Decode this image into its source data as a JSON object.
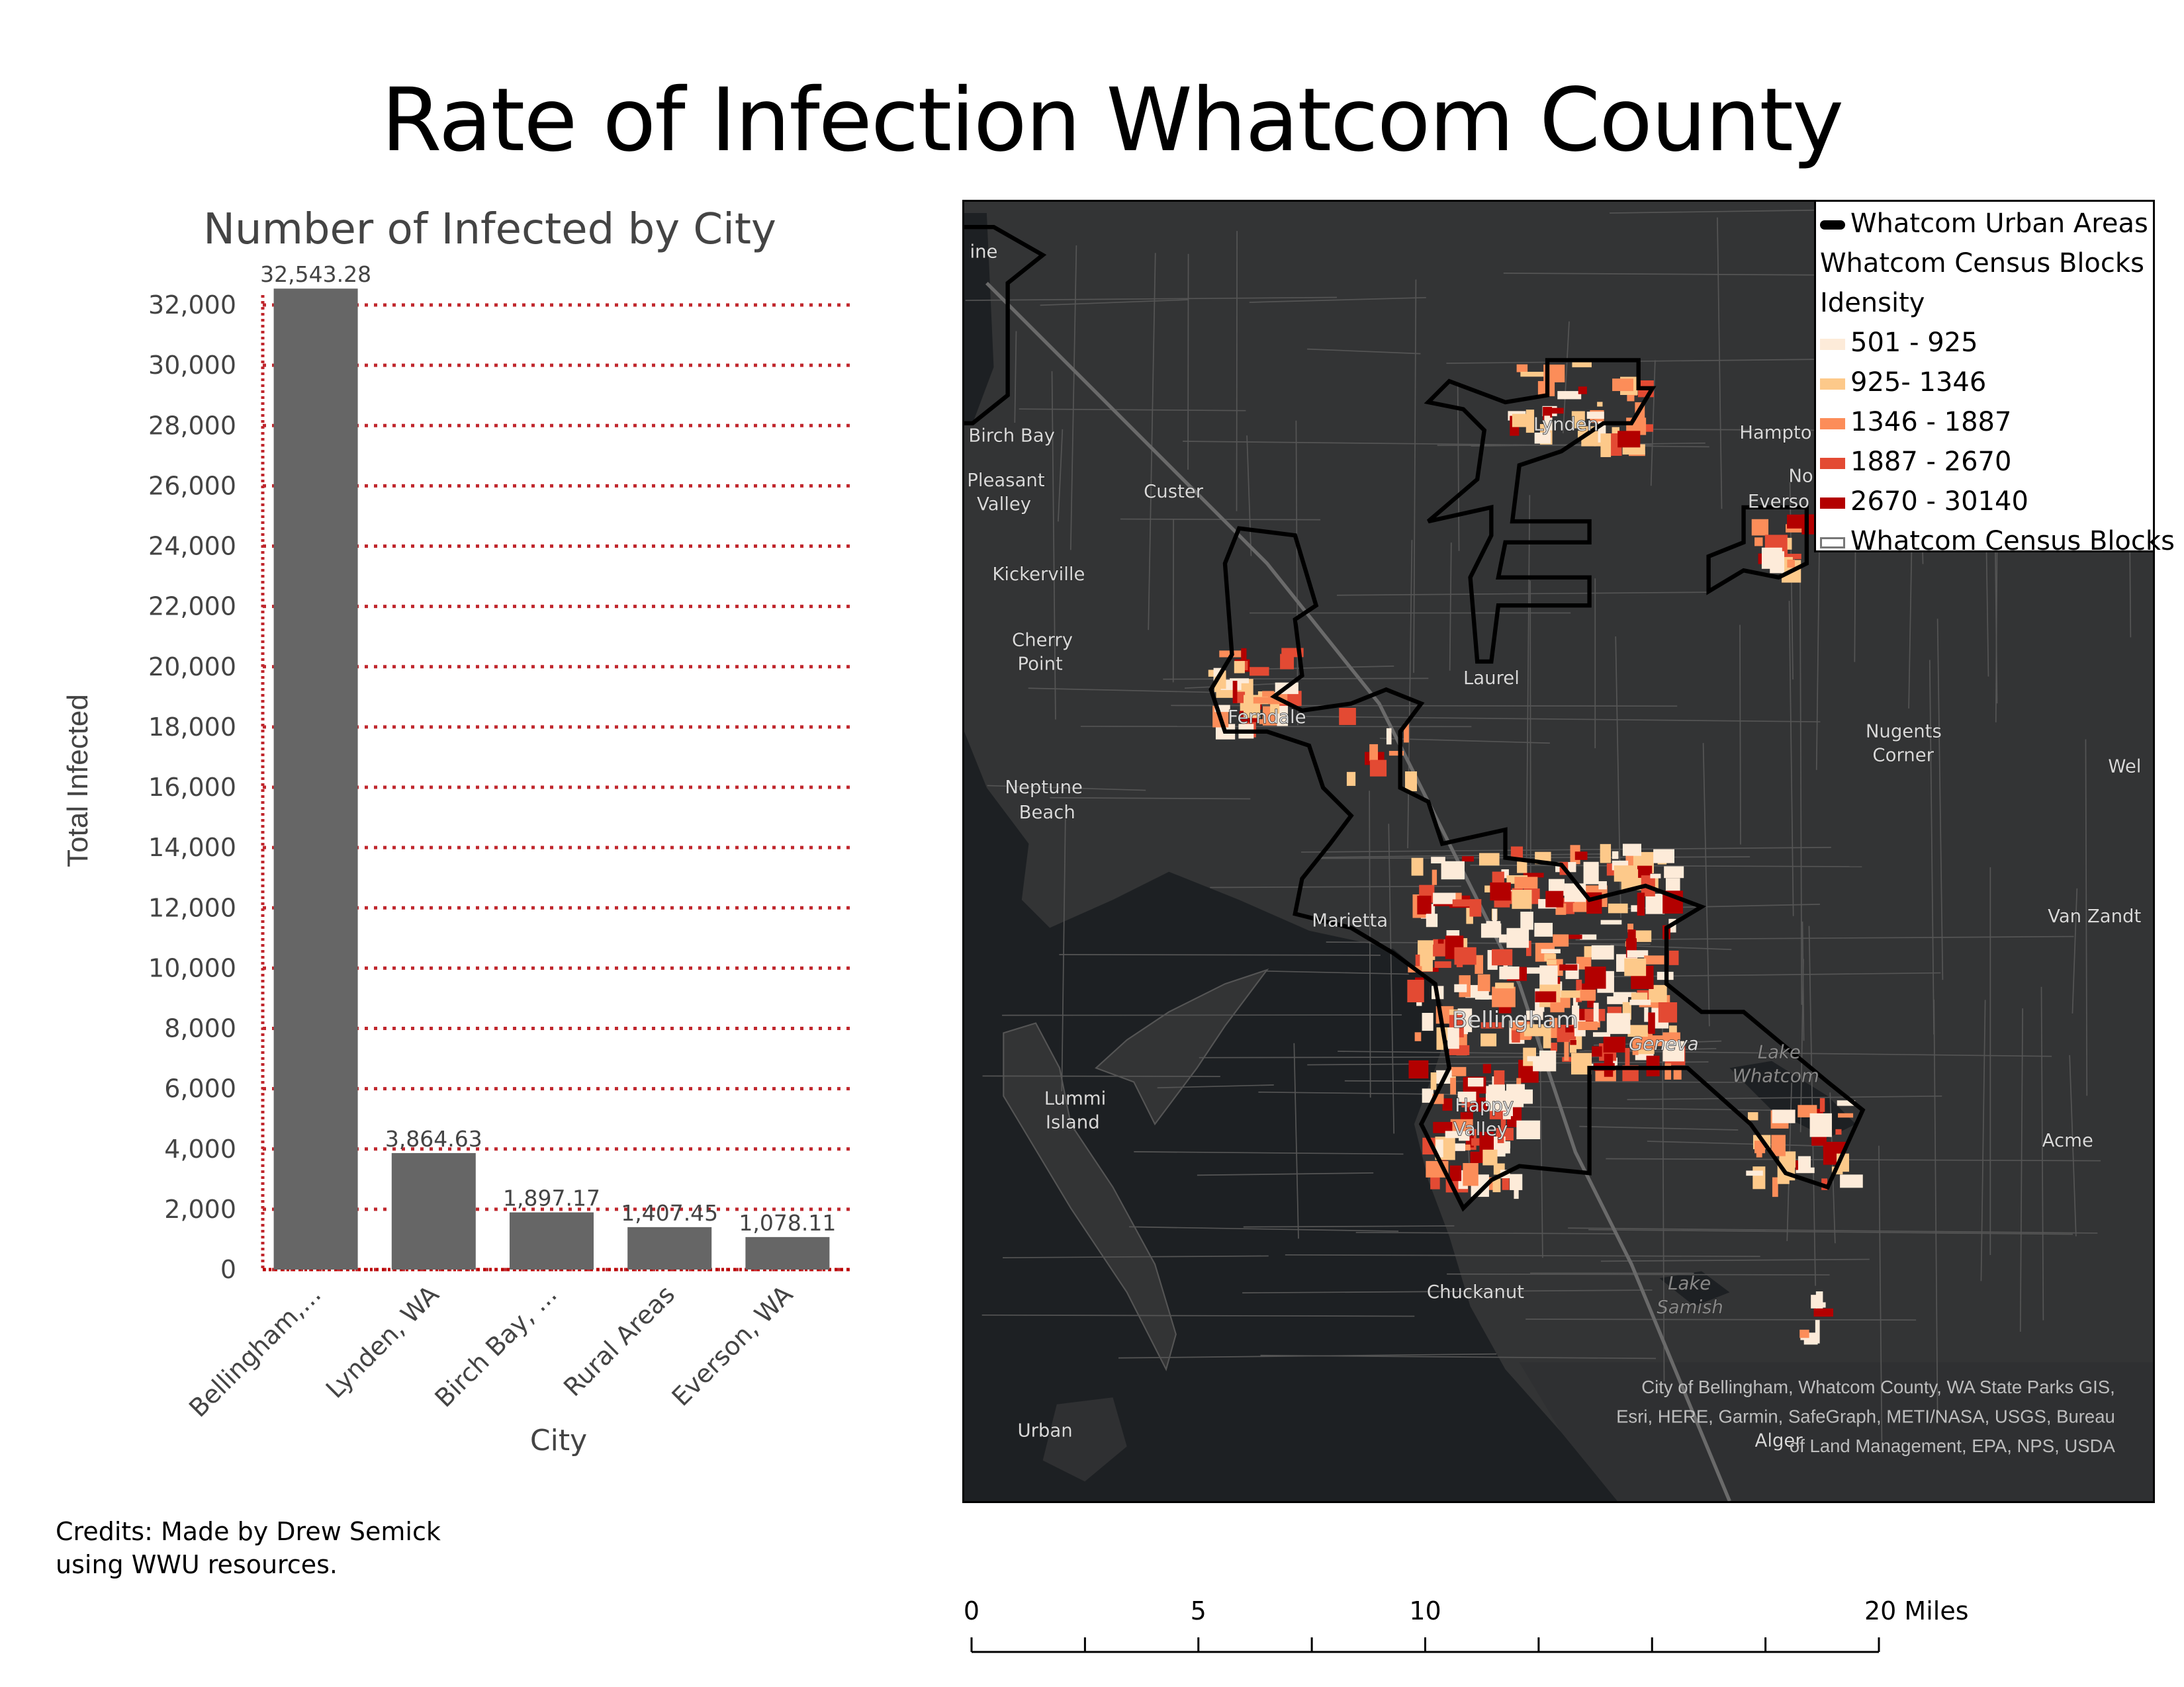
{
  "title": "Rate of Infection Whatcom County",
  "chart_data": {
    "type": "bar",
    "title": "Number of Infected by City",
    "xlabel": "City",
    "ylabel": "Total Infected",
    "categories": [
      "Bellingham,...",
      "Lynden, WA",
      "Birch Bay, ...",
      "Rural Areas",
      "Everson, WA"
    ],
    "values": [
      32543.28,
      3864.63,
      1897.17,
      1407.45,
      1078.11
    ],
    "data_labels": [
      "32,543.28",
      "3,864.63",
      "1,897.17",
      "1,407.45",
      "1,078.11"
    ],
    "ylim": [
      0,
      32000
    ],
    "yticks": [
      "0",
      "2,000",
      "4,000",
      "6,000",
      "8,000",
      "10,000",
      "12,000",
      "14,000",
      "16,000",
      "18,000",
      "20,000",
      "22,000",
      "24,000",
      "26,000",
      "28,000",
      "30,000",
      "32,000"
    ],
    "grid": true,
    "bar_color": "#666666",
    "grid_color": "#c0272d"
  },
  "credits": [
    "Credits: Made by Drew Semick",
    "using WWU resources."
  ],
  "legend": {
    "urban_areas": "Whatcom Urban Areas",
    "layer": "Whatcom Census Blocks",
    "field": "Idensity",
    "classes": [
      {
        "label": "501 - 925",
        "color": "#fdebd9"
      },
      {
        "label": "925- 1346",
        "color": "#fdc98a"
      },
      {
        "label": "1346 - 1887",
        "color": "#fc8d59"
      },
      {
        "label": "1887 - 2670",
        "color": "#e34a33"
      },
      {
        "label": "2670 - 30140",
        "color": "#b30000"
      }
    ],
    "outline_layer": "Whatcom Census Blocks"
  },
  "map": {
    "place_labels": [
      "ine",
      "Birch Bay",
      "Pleasant",
      "Valley",
      "Custer",
      "Kickerville",
      "Cherry",
      "Point",
      "Lynden",
      "Laurel",
      "Ferndale",
      "Neptune",
      "Beach",
      "Hampto",
      "No",
      "Everso",
      "Nugents",
      "Corner",
      "Wel",
      "Marietta",
      "Van Zandt",
      "Bellingham",
      "Geneva",
      "Lake",
      "Whatcom",
      "Lummi",
      "Island",
      "Happy",
      "Valley",
      "Acme",
      "Chuckanut",
      "Lake",
      "Samish",
      "Urban",
      "Alger"
    ],
    "attribution": [
      "City of Bellingham, Whatcom County, WA State Parks GIS,",
      "Esri, HERE, Garmin, SafeGraph, METI/NASA, USGS, Bureau",
      "of Land Management, EPA, NPS, USDA"
    ]
  },
  "scale_bar": {
    "labels": [
      "0",
      "5",
      "10",
      "20 Miles"
    ],
    "values": [
      0,
      5,
      10,
      20
    ]
  }
}
